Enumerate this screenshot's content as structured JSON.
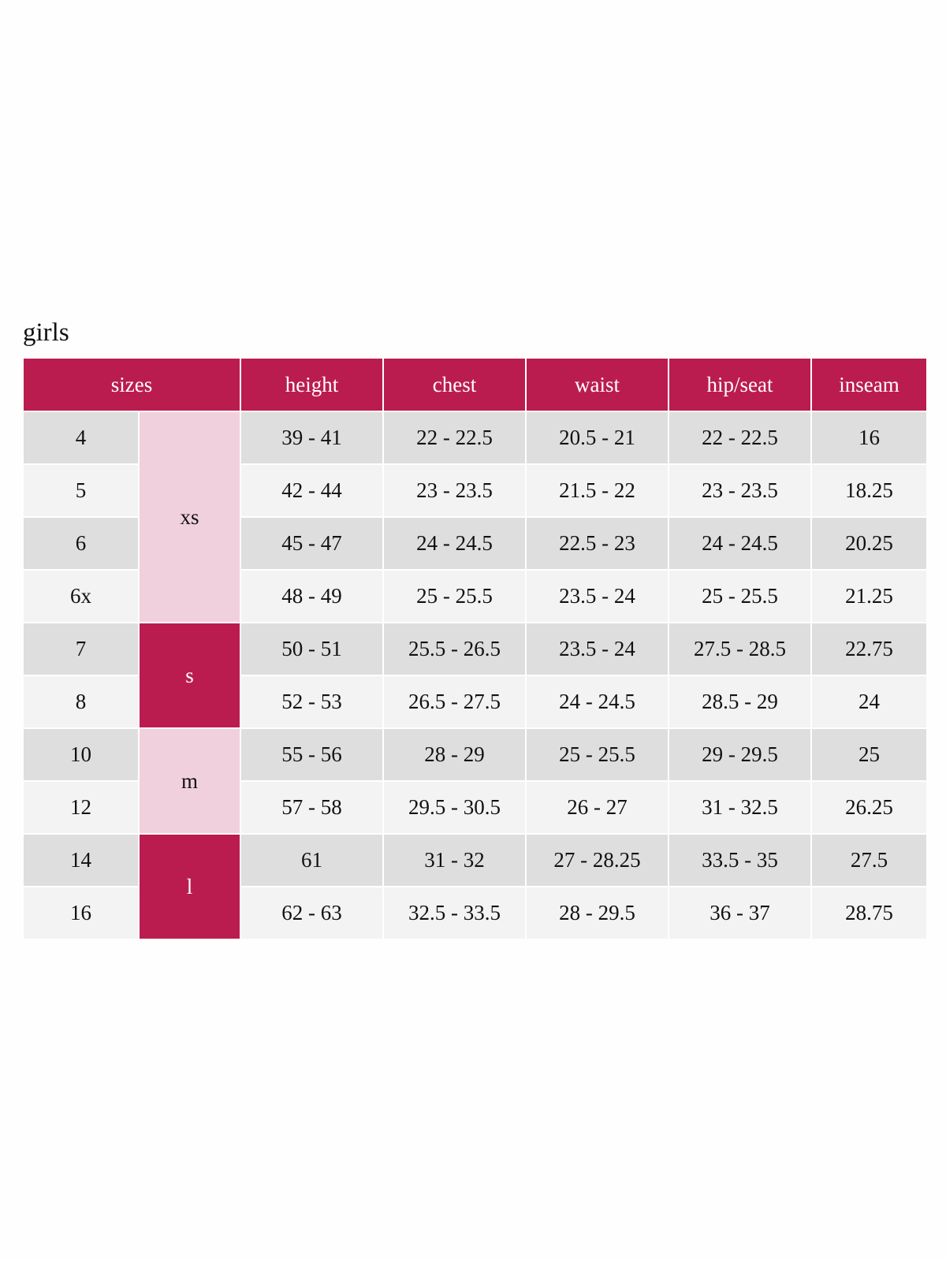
{
  "title": "girls",
  "colors": {
    "header": "#bb1c4f",
    "pink": "#f1d0dd",
    "row_dark": "#dedede",
    "row_light": "#f3f3f3"
  },
  "headers": [
    "sizes",
    "height",
    "chest",
    "waist",
    "hip/seat",
    "inseam"
  ],
  "groups": [
    {
      "label": "xs",
      "rows": 4,
      "style": "pink"
    },
    {
      "label": "s",
      "rows": 2,
      "style": "crimson"
    },
    {
      "label": "m",
      "rows": 2,
      "style": "pink"
    },
    {
      "label": "l",
      "rows": 2,
      "style": "crimson"
    }
  ],
  "rows": [
    [
      "4",
      "39 - 41",
      "22 - 22.5",
      "20.5 - 21",
      "22 - 22.5",
      "16"
    ],
    [
      "5",
      "42 - 44",
      "23 - 23.5",
      "21.5 - 22",
      "23 - 23.5",
      "18.25"
    ],
    [
      "6",
      "45 - 47",
      "24 - 24.5",
      "22.5 - 23",
      "24 - 24.5",
      "20.25"
    ],
    [
      "6x",
      "48 - 49",
      "25 - 25.5",
      "23.5 - 24",
      "25 - 25.5",
      "21.25"
    ],
    [
      "7",
      "50 - 51",
      "25.5 - 26.5",
      "23.5 - 24",
      "27.5 - 28.5",
      "22.75"
    ],
    [
      "8",
      "52 - 53",
      "26.5 - 27.5",
      "24 - 24.5",
      "28.5 - 29",
      "24"
    ],
    [
      "10",
      "55 - 56",
      "28 - 29",
      "25 - 25.5",
      "29 - 29.5",
      "25"
    ],
    [
      "12",
      "57 - 58",
      "29.5 - 30.5",
      "26 - 27",
      "31 - 32.5",
      "26.25"
    ],
    [
      "14",
      "61",
      "31 - 32",
      "27 - 28.25",
      "33.5 - 35",
      "27.5"
    ],
    [
      "16",
      "62 - 63",
      "32.5 - 33.5",
      "28 - 29.5",
      "36 - 37",
      "28.75"
    ]
  ]
}
